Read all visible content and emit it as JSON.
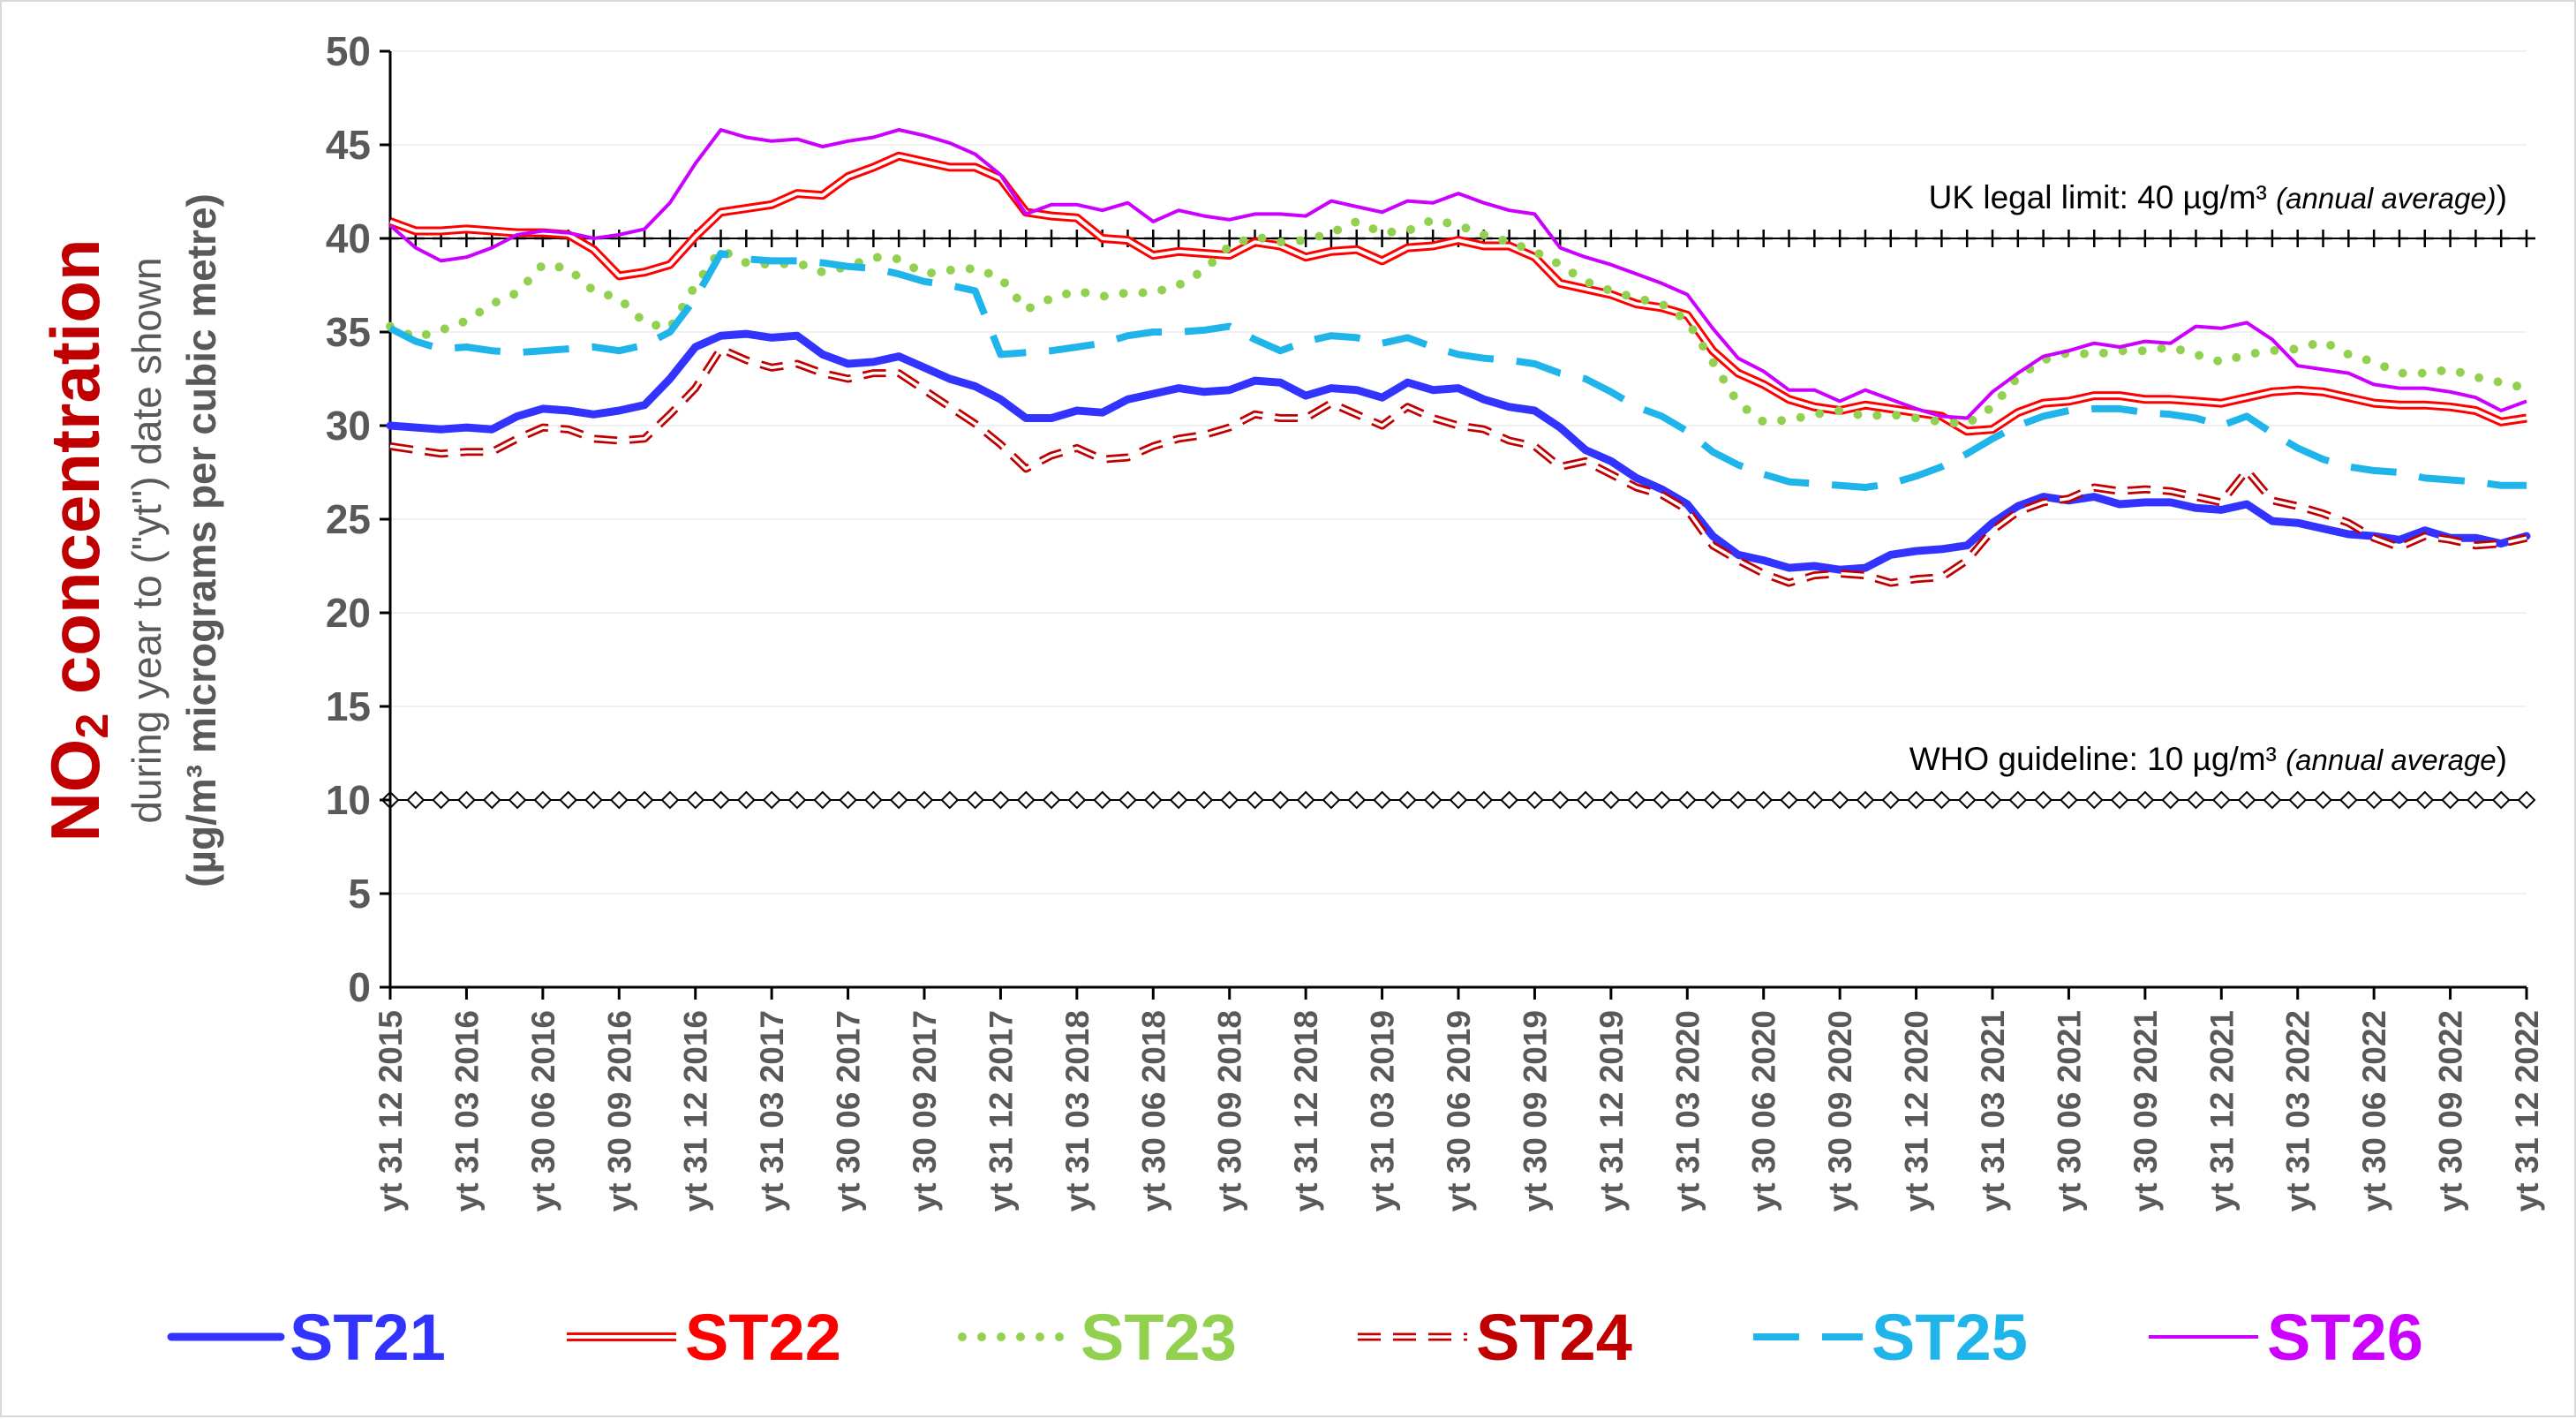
{
  "chart_data": {
    "type": "line",
    "ylabel": {
      "main_prefix": "NO",
      "main_sub": "2",
      "main_suffix": " concentration",
      "line2": "during year to (\"yt\") date shown",
      "line3": "(µg/m³ micrograms per cubic metre)"
    },
    "ylim": [
      0,
      50
    ],
    "yticks": [
      0,
      5,
      10,
      15,
      20,
      25,
      30,
      35,
      40,
      45,
      50
    ],
    "x_tick_labels": [
      "yt 31 12 2015",
      "yt 31 03 2016",
      "yt 30 06 2016",
      "yt 30 09 2016",
      "yt 31 12 2016",
      "yt 31 03 2017",
      "yt 30 06 2017",
      "yt 30 09 2017",
      "yt 31 12 2017",
      "yt 31 03 2018",
      "yt 30 06 2018",
      "yt 30 09 2018",
      "yt 31 12 2018",
      "yt 31 03 2019",
      "yt 30 06 2019",
      "yt 30 09 2019",
      "yt 31 12 2019",
      "yt 31 03 2020",
      "yt 30 06 2020",
      "yt 30 09 2020",
      "yt 31 12 2020",
      "yt 31 03 2021",
      "yt 30 06 2021",
      "yt 30 09 2021",
      "yt 31 12 2021",
      "yt 31 03 2022",
      "yt 30 06 2022",
      "yt 30 09 2022",
      "yt 31 12 2022"
    ],
    "grid": "horizontal",
    "legend_position": "bottom",
    "reference_lines": [
      {
        "value": 40,
        "label": "UK legal limit:  40 µg/m³ ",
        "note": "(annual average)",
        "close": ")",
        "marker": "plus"
      },
      {
        "value": 10,
        "label": "WHO guideline:  10 µg/m³ ",
        "note": "(annual average",
        "close": ")",
        "marker": "diamond"
      }
    ],
    "series": [
      {
        "name": "ST21",
        "color": "#3333ff",
        "style": "thick",
        "values": [
          30.0,
          29.9,
          29.8,
          29.9,
          29.8,
          30.5,
          30.9,
          30.8,
          30.6,
          30.8,
          31.1,
          32.5,
          34.2,
          34.8,
          34.9,
          34.7,
          34.8,
          33.8,
          33.3,
          33.4,
          33.7,
          33.1,
          32.5,
          32.1,
          31.4,
          30.4,
          30.4,
          30.8,
          30.7,
          31.4,
          31.7,
          32.0,
          31.8,
          31.9,
          32.4,
          32.3,
          31.6,
          32.0,
          31.9,
          31.5,
          32.3,
          31.9,
          32.0,
          31.4,
          31.0,
          30.8,
          29.9,
          28.7,
          28.1,
          27.2,
          26.6,
          25.8,
          24.1,
          23.1,
          22.8,
          22.4,
          22.5,
          22.3,
          22.4,
          23.1,
          23.3,
          23.4,
          23.6,
          24.8,
          25.7,
          26.2,
          26.0,
          26.2,
          25.8,
          25.9,
          25.9,
          25.6,
          25.5,
          25.8,
          24.9,
          24.8,
          24.5,
          24.2,
          24.1,
          23.9,
          24.4,
          24.0,
          24.0,
          23.7,
          24.1
        ]
      },
      {
        "name": "ST22",
        "color": "#ff0000",
        "style": "double",
        "values": [
          40.9,
          40.4,
          40.4,
          40.5,
          40.4,
          40.3,
          40.3,
          40.2,
          39.4,
          38.0,
          38.2,
          38.6,
          40.1,
          41.4,
          41.6,
          41.8,
          42.4,
          42.3,
          43.3,
          43.8,
          44.4,
          44.1,
          43.8,
          43.8,
          43.2,
          41.4,
          41.2,
          41.1,
          40.0,
          39.9,
          39.1,
          39.3,
          39.2,
          39.1,
          39.8,
          39.6,
          39.0,
          39.3,
          39.4,
          38.8,
          39.5,
          39.6,
          39.9,
          39.6,
          39.6,
          39.0,
          37.6,
          37.3,
          37.0,
          36.5,
          36.3,
          35.9,
          34.0,
          32.8,
          32.2,
          31.4,
          31.0,
          30.8,
          31.1,
          30.9,
          30.7,
          30.5,
          29.7,
          29.8,
          30.7,
          31.2,
          31.3,
          31.6,
          31.6,
          31.4,
          31.4,
          31.3,
          31.2,
          31.5,
          31.8,
          31.9,
          31.8,
          31.5,
          31.2,
          31.1,
          31.1,
          31.0,
          30.8,
          30.2,
          30.4
        ]
      },
      {
        "name": "ST23",
        "color": "#92d050",
        "style": "dotted",
        "values": [
          35.3,
          34.7,
          35.1,
          35.6,
          36.5,
          37.1,
          38.6,
          38.4,
          37.2,
          36.8,
          35.5,
          35.2,
          37.5,
          39.4,
          38.7,
          38.6,
          38.7,
          38.2,
          38.5,
          39.0,
          38.9,
          38.1,
          38.3,
          38.4,
          37.9,
          36.2,
          36.8,
          37.2,
          36.9,
          37.1,
          37.1,
          37.5,
          38.3,
          39.6,
          40.1,
          39.8,
          39.9,
          40.3,
          40.9,
          40.3,
          40.4,
          41.0,
          40.7,
          40.2,
          39.8,
          39.3,
          38.6,
          37.7,
          37.2,
          36.8,
          36.5,
          35.6,
          33.4,
          31.2,
          30.2,
          30.3,
          30.6,
          30.8,
          30.5,
          30.6,
          30.4,
          30.2,
          30.1,
          31.0,
          32.6,
          33.5,
          33.9,
          33.8,
          34.0,
          34.0,
          34.2,
          33.8,
          33.4,
          33.8,
          34.0,
          34.1,
          34.5,
          33.8,
          33.4,
          32.8,
          32.8,
          33.0,
          32.6,
          32.3,
          32.0
        ]
      },
      {
        "name": "ST24",
        "color": "#c00000",
        "style": "dashed-double",
        "values": [
          28.9,
          28.7,
          28.5,
          28.6,
          28.6,
          29.3,
          29.9,
          29.8,
          29.3,
          29.2,
          29.3,
          30.6,
          32.0,
          34.1,
          33.5,
          33.1,
          33.3,
          32.8,
          32.5,
          32.8,
          32.8,
          31.9,
          31.0,
          30.1,
          29.0,
          27.7,
          28.4,
          28.8,
          28.2,
          28.3,
          28.9,
          29.3,
          29.5,
          29.9,
          30.6,
          30.4,
          30.4,
          31.2,
          30.6,
          30.0,
          31.0,
          30.4,
          30.0,
          29.8,
          29.2,
          28.9,
          27.8,
          28.1,
          27.4,
          26.7,
          26.3,
          25.5,
          23.6,
          22.8,
          22.1,
          21.6,
          22.0,
          22.1,
          22.0,
          21.6,
          21.8,
          21.9,
          22.8,
          24.4,
          25.4,
          25.9,
          26.1,
          26.7,
          26.5,
          26.6,
          26.5,
          26.2,
          25.9,
          27.6,
          26.0,
          25.7,
          25.3,
          24.8,
          24.0,
          23.5,
          24.1,
          23.9,
          23.6,
          23.7,
          24.0
        ]
      },
      {
        "name": "ST25",
        "color": "#1fb5ea",
        "style": "long-dash",
        "values": [
          35.2,
          34.5,
          34.1,
          34.2,
          34.0,
          33.9,
          34.0,
          34.1,
          34.2,
          34.0,
          34.3,
          35.0,
          36.8,
          39.2,
          38.9,
          38.8,
          38.8,
          38.7,
          38.5,
          38.4,
          38.1,
          37.7,
          37.5,
          37.2,
          33.8,
          33.9,
          34.0,
          34.2,
          34.4,
          34.8,
          35.0,
          35.0,
          35.1,
          35.3,
          34.6,
          34.0,
          34.5,
          34.8,
          34.7,
          34.4,
          34.7,
          34.2,
          33.8,
          33.6,
          33.5,
          33.3,
          32.8,
          32.5,
          31.8,
          31.0,
          30.5,
          29.7,
          28.6,
          27.9,
          27.4,
          27.0,
          26.9,
          26.8,
          26.7,
          26.9,
          27.3,
          27.8,
          28.5,
          29.3,
          30.0,
          30.5,
          30.8,
          30.9,
          30.9,
          30.7,
          30.6,
          30.4,
          30.0,
          30.5,
          29.6,
          28.8,
          28.2,
          27.8,
          27.6,
          27.5,
          27.2,
          27.1,
          27.0,
          26.8,
          26.8
        ]
      },
      {
        "name": "ST26",
        "color": "#cc00ff",
        "style": "thin",
        "values": [
          40.7,
          39.5,
          38.8,
          39.0,
          39.5,
          40.2,
          40.4,
          40.3,
          40.0,
          40.2,
          40.5,
          41.9,
          44.0,
          45.8,
          45.4,
          45.2,
          45.3,
          44.9,
          45.2,
          45.4,
          45.8,
          45.5,
          45.1,
          44.5,
          43.4,
          41.3,
          41.8,
          41.8,
          41.5,
          41.9,
          40.9,
          41.5,
          41.2,
          41.0,
          41.3,
          41.3,
          41.2,
          42.0,
          41.7,
          41.4,
          42.0,
          41.9,
          42.4,
          41.9,
          41.5,
          41.3,
          39.5,
          39.0,
          38.6,
          38.1,
          37.6,
          37.0,
          35.2,
          33.6,
          32.9,
          31.9,
          31.9,
          31.3,
          31.9,
          31.4,
          30.9,
          30.5,
          30.4,
          31.8,
          32.8,
          33.7,
          34.0,
          34.4,
          34.2,
          34.5,
          34.4,
          35.3,
          35.2,
          35.5,
          34.6,
          33.2,
          33.0,
          32.8,
          32.2,
          32.0,
          32.0,
          31.8,
          31.5,
          30.8,
          31.3
        ]
      }
    ]
  }
}
